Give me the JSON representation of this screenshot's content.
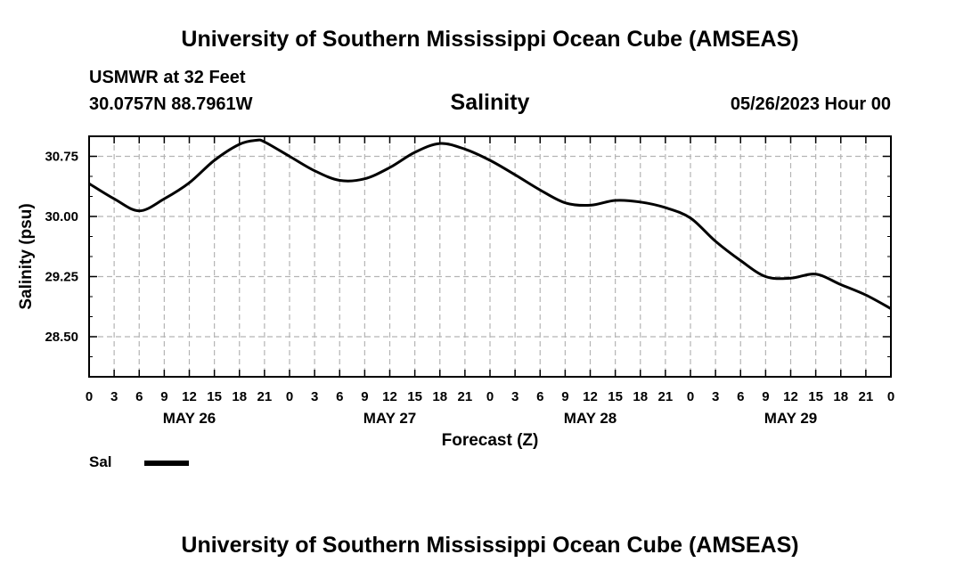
{
  "header": {
    "title": "University of Southern Mississippi Ocean Cube (AMSEAS)",
    "station": "USMWR at 32 Feet",
    "coordinates": "30.0757N  88.7961W",
    "variable_title": "Salinity",
    "run_time": "05/26/2023 Hour 00"
  },
  "footer": {
    "title": "University of Southern Mississippi Ocean Cube (AMSEAS)"
  },
  "legend": {
    "label": "Sal",
    "color": "#000000"
  },
  "chart_data": {
    "type": "line",
    "title": "Salinity",
    "xlabel": "Forecast (Z)",
    "ylabel": "Salinity (psu)",
    "xlim": [
      0,
      96
    ],
    "ylim": [
      28.0,
      31.0
    ],
    "grid": true,
    "y_ticks": [
      28.5,
      29.25,
      30.0,
      30.75
    ],
    "y_tick_labels": [
      "28.50",
      "29.25",
      "30.00",
      "30.75"
    ],
    "x_ticks": [
      0,
      3,
      6,
      9,
      12,
      15,
      18,
      21,
      24,
      27,
      30,
      33,
      36,
      39,
      42,
      45,
      48,
      51,
      54,
      57,
      60,
      63,
      66,
      69,
      72,
      75,
      78,
      81,
      84,
      87,
      90,
      93,
      96
    ],
    "x_tick_labels": [
      "0",
      "3",
      "6",
      "9",
      "12",
      "15",
      "18",
      "21",
      "0",
      "3",
      "6",
      "9",
      "12",
      "15",
      "18",
      "21",
      "0",
      "3",
      "6",
      "9",
      "12",
      "15",
      "18",
      "21",
      "0",
      "3",
      "6",
      "9",
      "12",
      "15",
      "18",
      "21",
      "0"
    ],
    "day_labels": [
      {
        "label": "MAY 26",
        "x": 12
      },
      {
        "label": "MAY 27",
        "x": 36
      },
      {
        "label": "MAY 28",
        "x": 60
      },
      {
        "label": "MAY 29",
        "x": 84
      }
    ],
    "series": [
      {
        "name": "Sal",
        "color": "#000000",
        "x": [
          0,
          3,
          6,
          9,
          12,
          15,
          18,
          20,
          21,
          24,
          27,
          30,
          33,
          36,
          39,
          42,
          45,
          48,
          51,
          54,
          57,
          60,
          63,
          66,
          69,
          72,
          75,
          78,
          81,
          84,
          87,
          90,
          93,
          96
        ],
        "values": [
          30.41,
          30.22,
          30.07,
          30.22,
          30.42,
          30.7,
          30.9,
          30.95,
          30.93,
          30.75,
          30.57,
          30.45,
          30.47,
          30.61,
          30.8,
          30.91,
          30.84,
          30.7,
          30.52,
          30.33,
          30.17,
          30.14,
          30.2,
          30.18,
          30.11,
          29.98,
          29.69,
          29.45,
          29.25,
          29.23,
          29.28,
          29.15,
          29.02,
          28.85
        ]
      }
    ]
  }
}
